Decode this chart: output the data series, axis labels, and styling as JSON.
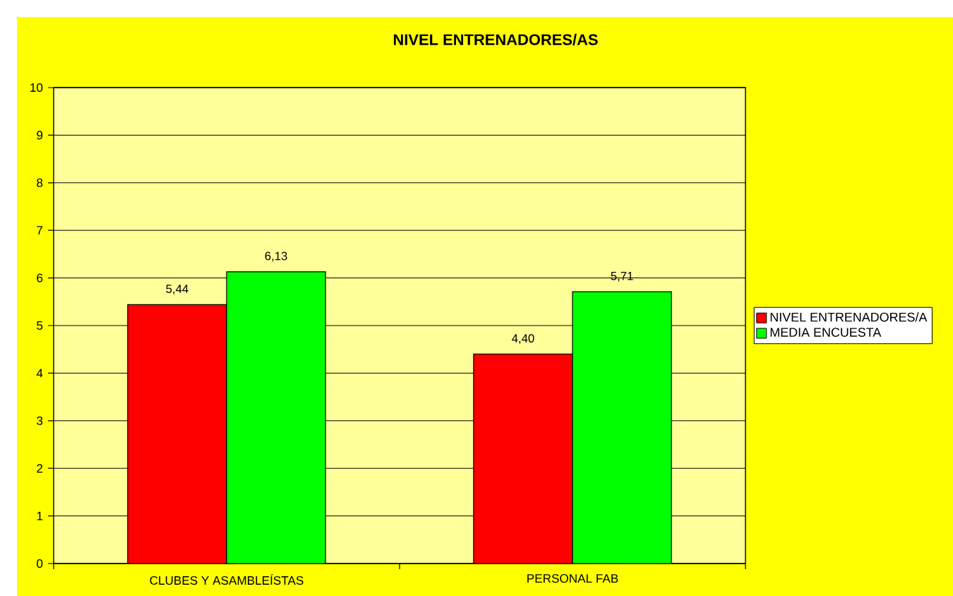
{
  "chart_data": {
    "type": "bar",
    "title": "NIVEL ENTRENADORES/AS",
    "categories": [
      "CLUBES Y ASAMBLEÍSTAS",
      "PERSONAL FAB"
    ],
    "series": [
      {
        "name": "NIVEL ENTRENADORES/A",
        "color": "#ff0000",
        "values": [
          5.44,
          4.4
        ],
        "value_labels": [
          "5,44",
          "4,40"
        ]
      },
      {
        "name": "MEDIA ENCUESTA",
        "color": "#00ff00",
        "values": [
          6.13,
          5.71
        ],
        "value_labels": [
          "6,13",
          "5,71"
        ]
      }
    ],
    "ylim": [
      0,
      10
    ],
    "yticks": [
      0,
      1,
      2,
      3,
      4,
      5,
      6,
      7,
      8,
      9,
      10
    ],
    "grid": "y",
    "legend": "right"
  }
}
